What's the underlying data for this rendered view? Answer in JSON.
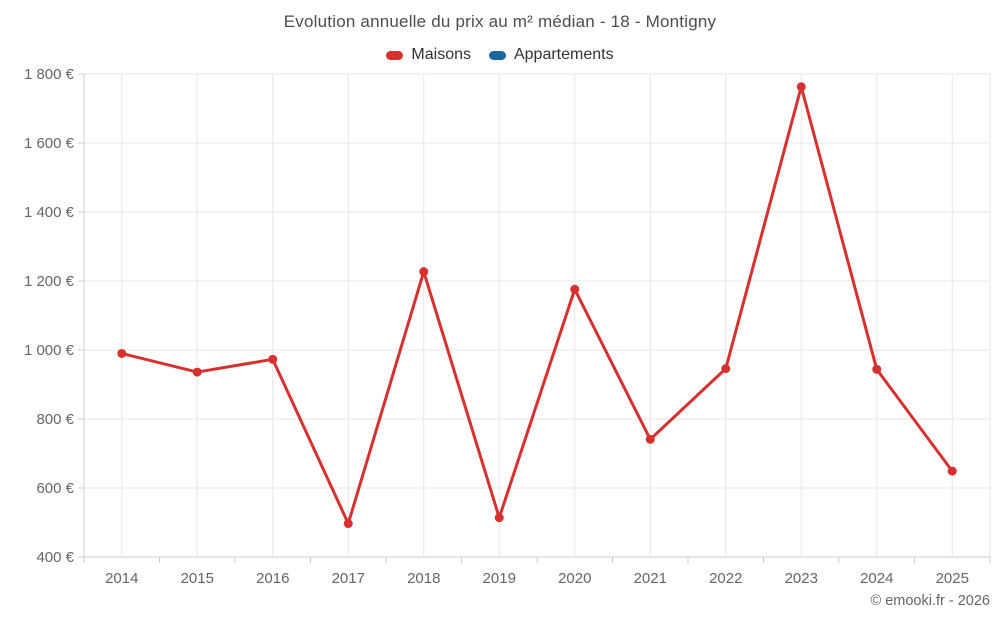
{
  "header": {
    "title": "Evolution annuelle du prix au m² médian - 18 - Montigny"
  },
  "legend": {
    "items": [
      {
        "label": "Maisons",
        "color": "#d7312f"
      },
      {
        "label": "Appartements",
        "color": "#19679c"
      }
    ]
  },
  "footer": {
    "credit": "© emooki.fr - 2026"
  },
  "colors": {
    "maisons_red": "#d7312f",
    "appartements_blue": "#19679c",
    "gridline": "#e7e7e7",
    "axis_line": "#cccccc",
    "axis_text": "#666666",
    "title_text": "#4d4d4d"
  },
  "chart_data": {
    "type": "line",
    "title": "Evolution annuelle du prix au m² médian - 18 - Montigny",
    "xlabel": "",
    "ylabel": "",
    "legend_position": "top",
    "grid": true,
    "categories": [
      "2014",
      "2015",
      "2016",
      "2017",
      "2018",
      "2019",
      "2020",
      "2021",
      "2022",
      "2023",
      "2024",
      "2025"
    ],
    "series": [
      {
        "name": "Maisons",
        "color": "#d7312f",
        "marker": "circle",
        "values": [
          990,
          936,
          973,
          497,
          1227,
          514,
          1176,
          741,
          946,
          1763,
          944,
          649
        ]
      },
      {
        "name": "Appartements",
        "color": "#19679c",
        "marker": "circle",
        "values": []
      }
    ],
    "ylim": [
      400,
      1800
    ],
    "yticks": [
      {
        "value": 1800,
        "label": "1 800 €"
      },
      {
        "value": 1600,
        "label": "1 600 €"
      },
      {
        "value": 1400,
        "label": "1 400 €"
      },
      {
        "value": 1200,
        "label": "1 200 €"
      },
      {
        "value": 1000,
        "label": "1 000 €"
      },
      {
        "value": 800,
        "label": "800 €"
      },
      {
        "value": 600,
        "label": "600 €"
      },
      {
        "value": 400,
        "label": "400 €"
      }
    ]
  }
}
